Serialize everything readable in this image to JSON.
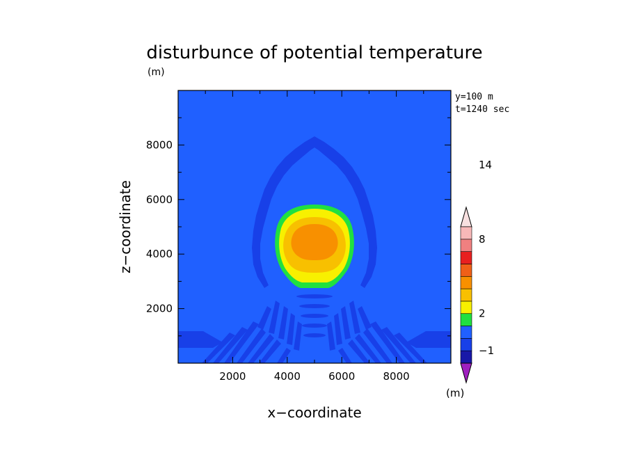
{
  "chart_data": {
    "type": "heatmap",
    "title": "disturbunce of potential temperature",
    "title_unit": "(m)",
    "xlabel": "x−coordinate",
    "ylabel": "z−coordinate",
    "xlim": [
      0,
      10000
    ],
    "ylim": [
      0,
      10000
    ],
    "x_ticks": [
      2000,
      4000,
      6000,
      8000
    ],
    "y_ticks": [
      2000,
      4000,
      6000,
      8000
    ],
    "x_tick_labels": [
      "2000",
      "4000",
      "6000",
      "8000"
    ],
    "y_tick_labels": [
      "2000",
      "4000",
      "6000",
      "8000"
    ],
    "annotations": [
      "y=100 m",
      "t=1240 sec"
    ],
    "background_level": 0,
    "colorbar": {
      "unit": "(m)",
      "levels": [
        {
          "color": "#a020c0"
        },
        {
          "color": "#1818a8"
        },
        {
          "color": "#1840e8"
        },
        {
          "color": "#2060ff"
        },
        {
          "color": "#20e040"
        },
        {
          "color": "#f8f000"
        },
        {
          "color": "#f8c000"
        },
        {
          "color": "#f89000"
        },
        {
          "color": "#f06018"
        },
        {
          "color": "#e82020"
        },
        {
          "color": "#f08080"
        },
        {
          "color": "#f8b8b8"
        },
        {
          "color": "#f8e0e0"
        }
      ],
      "labels": [
        {
          "text": "−1",
          "value": -1
        },
        {
          "text": "2",
          "value": 2
        },
        {
          "text": "8",
          "value": 8
        },
        {
          "text": "14",
          "value": 14
        }
      ]
    },
    "features": {
      "thermal_center": [
        5000,
        4550
      ],
      "levels": [
        {
          "name": "warm-bubble-outer",
          "value": 2,
          "color": "#20e040"
        },
        {
          "name": "warm-bubble-mid",
          "value": 4,
          "color": "#f8f000"
        },
        {
          "name": "warm-bubble-inner",
          "value": 6,
          "color": "#f8c000"
        },
        {
          "name": "warm-bubble-core",
          "value": 8,
          "color": "#f89000"
        }
      ],
      "negative_arc_color": "#1840e8"
    }
  }
}
